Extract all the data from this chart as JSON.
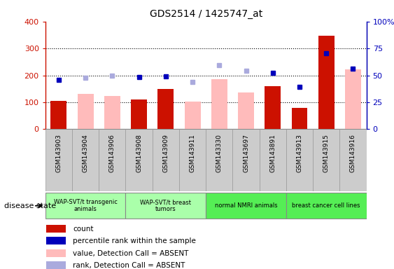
{
  "title": "GDS2514 / 1425747_at",
  "samples": [
    "GSM143903",
    "GSM143904",
    "GSM143906",
    "GSM143908",
    "GSM143909",
    "GSM143911",
    "GSM143330",
    "GSM143697",
    "GSM143891",
    "GSM143913",
    "GSM143915",
    "GSM143916"
  ],
  "count_values": [
    105,
    null,
    null,
    110,
    148,
    null,
    null,
    null,
    160,
    80,
    348,
    null
  ],
  "value_absent": [
    null,
    130,
    123,
    null,
    null,
    103,
    185,
    135,
    null,
    null,
    null,
    222
  ],
  "percentile_rank": [
    183,
    null,
    null,
    194,
    196,
    null,
    null,
    null,
    208,
    158,
    282,
    226
  ],
  "rank_absent": [
    null,
    190,
    198,
    null,
    null,
    176,
    238,
    216,
    null,
    null,
    null,
    null
  ],
  "groups": [
    {
      "label": "WAP-SVT/t transgenic\nanimals",
      "start": 0,
      "end": 3,
      "color": "#aaffaa"
    },
    {
      "label": "WAP-SVT/t breast\ntumors",
      "start": 3,
      "end": 6,
      "color": "#aaffaa"
    },
    {
      "label": "normal NMRI animals",
      "start": 6,
      "end": 9,
      "color": "#55ee55"
    },
    {
      "label": "breast cancer cell lines",
      "start": 9,
      "end": 12,
      "color": "#55ee55"
    }
  ],
  "ylim_left": [
    0,
    400
  ],
  "ylim_right": [
    0,
    100
  ],
  "yticks_left": [
    0,
    100,
    200,
    300,
    400
  ],
  "yticks_right": [
    0,
    25,
    50,
    75,
    100
  ],
  "bar_color_count": "#cc1100",
  "bar_color_absent": "#ffbbbb",
  "dot_color_rank": "#0000bb",
  "dot_color_rank_absent": "#aaaadd",
  "bg_color": "#ffffff",
  "legend_items": [
    {
      "label": "count",
      "color": "#cc1100"
    },
    {
      "label": "percentile rank within the sample",
      "color": "#0000bb"
    },
    {
      "label": "value, Detection Call = ABSENT",
      "color": "#ffbbbb"
    },
    {
      "label": "rank, Detection Call = ABSENT",
      "color": "#aaaadd"
    }
  ],
  "disease_state_label": "disease state"
}
